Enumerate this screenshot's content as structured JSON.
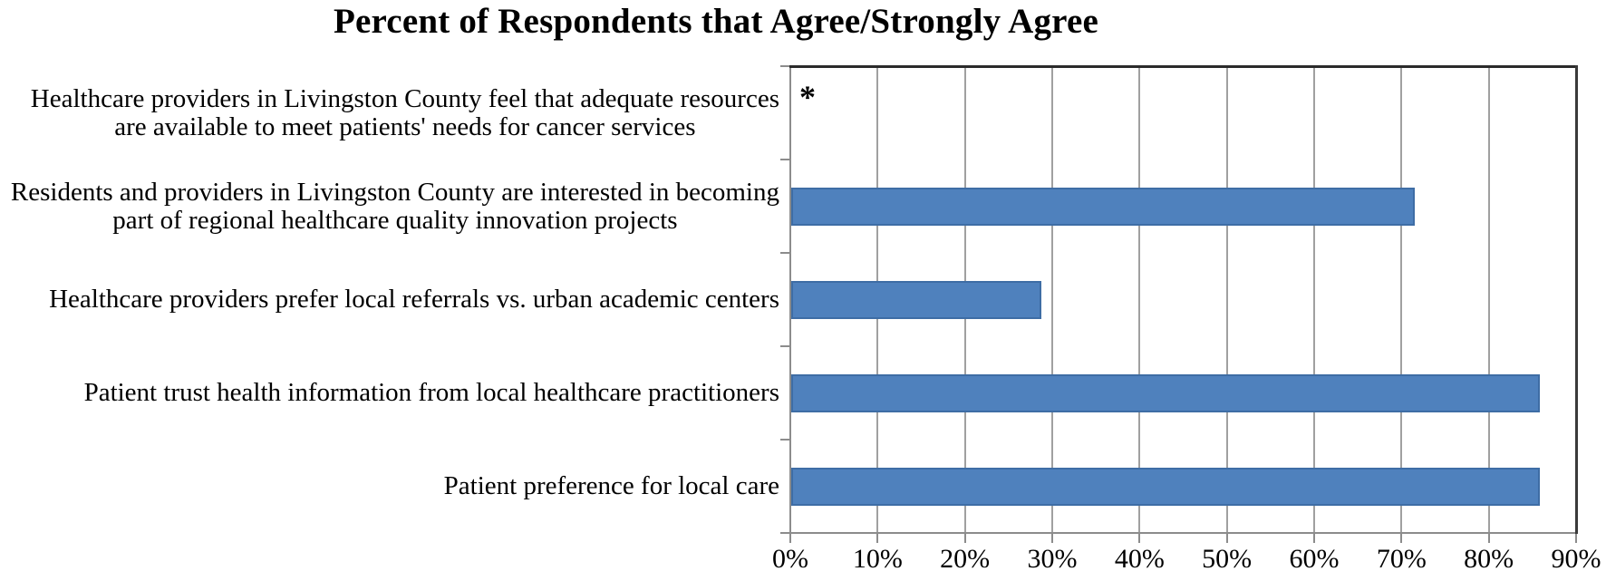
{
  "chart_data": {
    "type": "bar",
    "orientation": "horizontal",
    "title": "Percent of Respondents that Agree/Strongly Agree",
    "categories": [
      "Healthcare providers in Livingston County feel that adequate resources\nare available to meet patients' needs for cancer services",
      "Residents and providers in Livingston County are interested in becoming\npart of regional healthcare quality innovation projects",
      "Healthcare providers prefer local referrals vs. urban academic centers",
      "Patient trust health information from local healthcare practitioners",
      "Patient preference for local care"
    ],
    "values": [
      null,
      71.4,
      28.6,
      85.7,
      85.7
    ],
    "annotations": [
      {
        "category_index": 0,
        "text": "*"
      }
    ],
    "x_tick_labels": [
      "0%",
      "10%",
      "20%",
      "30%",
      "40%",
      "50%",
      "60%",
      "70%",
      "80%",
      "90%"
    ],
    "xlim": [
      0,
      90
    ],
    "grid": true,
    "legend": false,
    "bar_color": "#4f81bd",
    "bar_border_color": "#3e6da5",
    "gridline_color": "#a0a0a0"
  }
}
